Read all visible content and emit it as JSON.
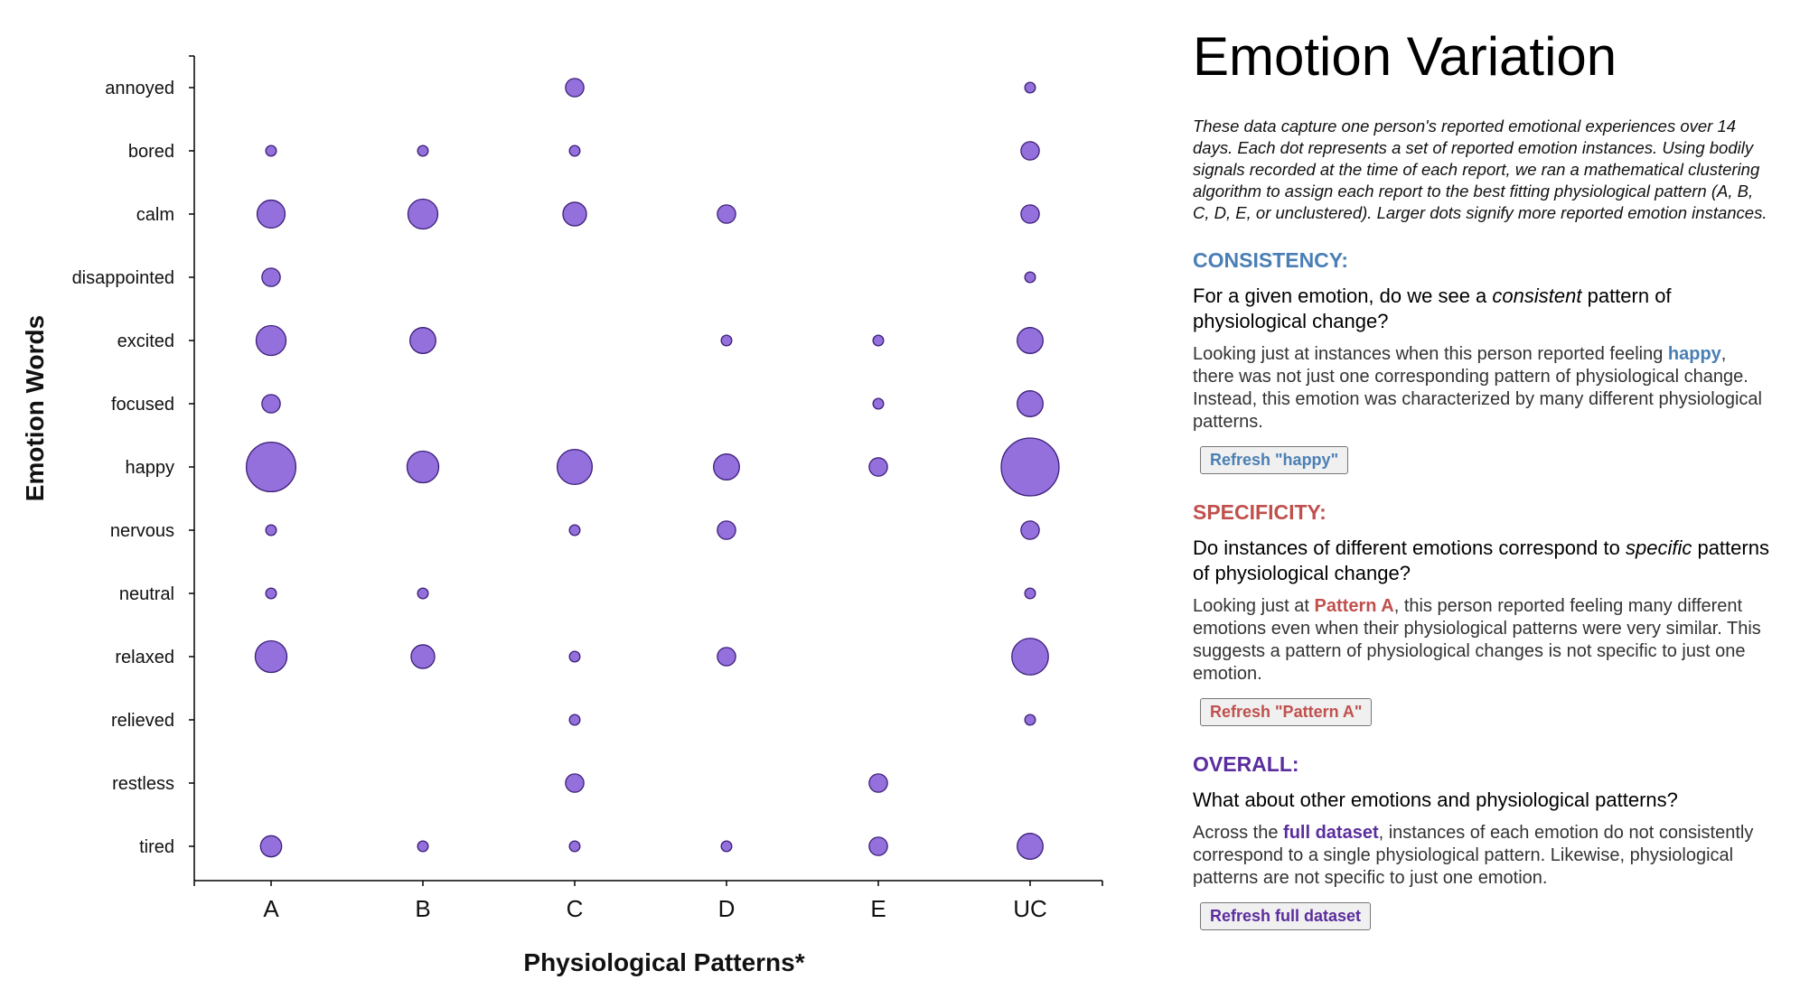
{
  "chart_data": {
    "type": "scatter",
    "xlabel": "Physiological Patterns*",
    "ylabel": "Emotion Words",
    "categories_x": [
      "A",
      "B",
      "C",
      "D",
      "E",
      "UC"
    ],
    "categories_y": [
      "annoyed",
      "bored",
      "calm",
      "disappointed",
      "excited",
      "focused",
      "happy",
      "nervous",
      "neutral",
      "relaxed",
      "relieved",
      "restless",
      "tired"
    ],
    "bubble_color": "#9370db",
    "bubble_stroke": "#3d1f7a",
    "points": [
      {
        "x": "C",
        "y": "annoyed",
        "size": 3
      },
      {
        "x": "UC",
        "y": "annoyed",
        "size": 1
      },
      {
        "x": "A",
        "y": "bored",
        "size": 1
      },
      {
        "x": "B",
        "y": "bored",
        "size": 1
      },
      {
        "x": "C",
        "y": "bored",
        "size": 1
      },
      {
        "x": "UC",
        "y": "bored",
        "size": 3
      },
      {
        "x": "A",
        "y": "calm",
        "size": 7
      },
      {
        "x": "B",
        "y": "calm",
        "size": 8
      },
      {
        "x": "C",
        "y": "calm",
        "size": 5
      },
      {
        "x": "D",
        "y": "calm",
        "size": 3
      },
      {
        "x": "UC",
        "y": "calm",
        "size": 3
      },
      {
        "x": "A",
        "y": "disappointed",
        "size": 3
      },
      {
        "x": "UC",
        "y": "disappointed",
        "size": 1
      },
      {
        "x": "A",
        "y": "excited",
        "size": 8
      },
      {
        "x": "B",
        "y": "excited",
        "size": 6
      },
      {
        "x": "D",
        "y": "excited",
        "size": 1
      },
      {
        "x": "E",
        "y": "excited",
        "size": 1
      },
      {
        "x": "UC",
        "y": "excited",
        "size": 6
      },
      {
        "x": "A",
        "y": "focused",
        "size": 3
      },
      {
        "x": "E",
        "y": "focused",
        "size": 1
      },
      {
        "x": "UC",
        "y": "focused",
        "size": 6
      },
      {
        "x": "A",
        "y": "happy",
        "size": 22
      },
      {
        "x": "B",
        "y": "happy",
        "size": 9
      },
      {
        "x": "C",
        "y": "happy",
        "size": 11
      },
      {
        "x": "D",
        "y": "happy",
        "size": 6
      },
      {
        "x": "E",
        "y": "happy",
        "size": 3
      },
      {
        "x": "UC",
        "y": "happy",
        "size": 30
      },
      {
        "x": "A",
        "y": "nervous",
        "size": 1
      },
      {
        "x": "C",
        "y": "nervous",
        "size": 1
      },
      {
        "x": "D",
        "y": "nervous",
        "size": 3
      },
      {
        "x": "UC",
        "y": "nervous",
        "size": 3
      },
      {
        "x": "A",
        "y": "neutral",
        "size": 1
      },
      {
        "x": "B",
        "y": "neutral",
        "size": 1
      },
      {
        "x": "UC",
        "y": "neutral",
        "size": 1
      },
      {
        "x": "A",
        "y": "relaxed",
        "size": 9
      },
      {
        "x": "B",
        "y": "relaxed",
        "size": 5
      },
      {
        "x": "C",
        "y": "relaxed",
        "size": 1
      },
      {
        "x": "D",
        "y": "relaxed",
        "size": 3
      },
      {
        "x": "UC",
        "y": "relaxed",
        "size": 12
      },
      {
        "x": "C",
        "y": "relieved",
        "size": 1
      },
      {
        "x": "UC",
        "y": "relieved",
        "size": 1
      },
      {
        "x": "C",
        "y": "restless",
        "size": 3
      },
      {
        "x": "E",
        "y": "restless",
        "size": 3
      },
      {
        "x": "A",
        "y": "tired",
        "size": 4
      },
      {
        "x": "B",
        "y": "tired",
        "size": 1
      },
      {
        "x": "C",
        "y": "tired",
        "size": 1
      },
      {
        "x": "D",
        "y": "tired",
        "size": 1
      },
      {
        "x": "E",
        "y": "tired",
        "size": 3
      },
      {
        "x": "UC",
        "y": "tired",
        "size": 6
      }
    ]
  },
  "panel": {
    "title": "Emotion Variation",
    "description": "These data capture one person's reported emotional experiences over 14 days. Each dot represents a set of reported emotion instances. Using bodily signals recorded at the time of each report, we ran a mathematical clustering algorithm to assign each report to the best fitting physiological pattern (A, B, C, D, E, or unclustered). Larger dots signify more reported emotion instances.",
    "consistency": {
      "heading": "CONSISTENCY:",
      "question_pre": "For a given emotion, do we see a ",
      "question_em": "consistent",
      "question_post": " pattern of physiological change?",
      "body_pre": "Looking just at instances when this person reported feeling ",
      "body_strong": "happy",
      "body_post": ", there was not just one corresponding pattern of physiological change. Instead, this emotion was characterized by many different physiological patterns.",
      "button": "Refresh \"happy\"",
      "color": "#4a7fb5"
    },
    "specificity": {
      "heading": "SPECIFICITY:",
      "question_pre": "Do instances of different emotions correspond to ",
      "question_em": "specific",
      "question_post": " patterns of physiological change?",
      "body_pre": "Looking just at ",
      "body_strong": "Pattern A",
      "body_post": ", this person reported feeling many different emotions even when their physiological patterns were very similar. This suggests a pattern of physiological changes is not specific to just one emotion.",
      "button": "Refresh \"Pattern A\"",
      "color": "#c0504d"
    },
    "overall": {
      "heading": "OVERALL:",
      "question": "What about other emotions and physiological patterns?",
      "body_pre": "Across the ",
      "body_strong": "full dataset",
      "body_post": ", instances of each emotion do not consistently correspond to a single physiological pattern. Likewise, physiological patterns are not specific to just one emotion.",
      "button": "Refresh full dataset",
      "color": "#5b2d9e"
    }
  }
}
